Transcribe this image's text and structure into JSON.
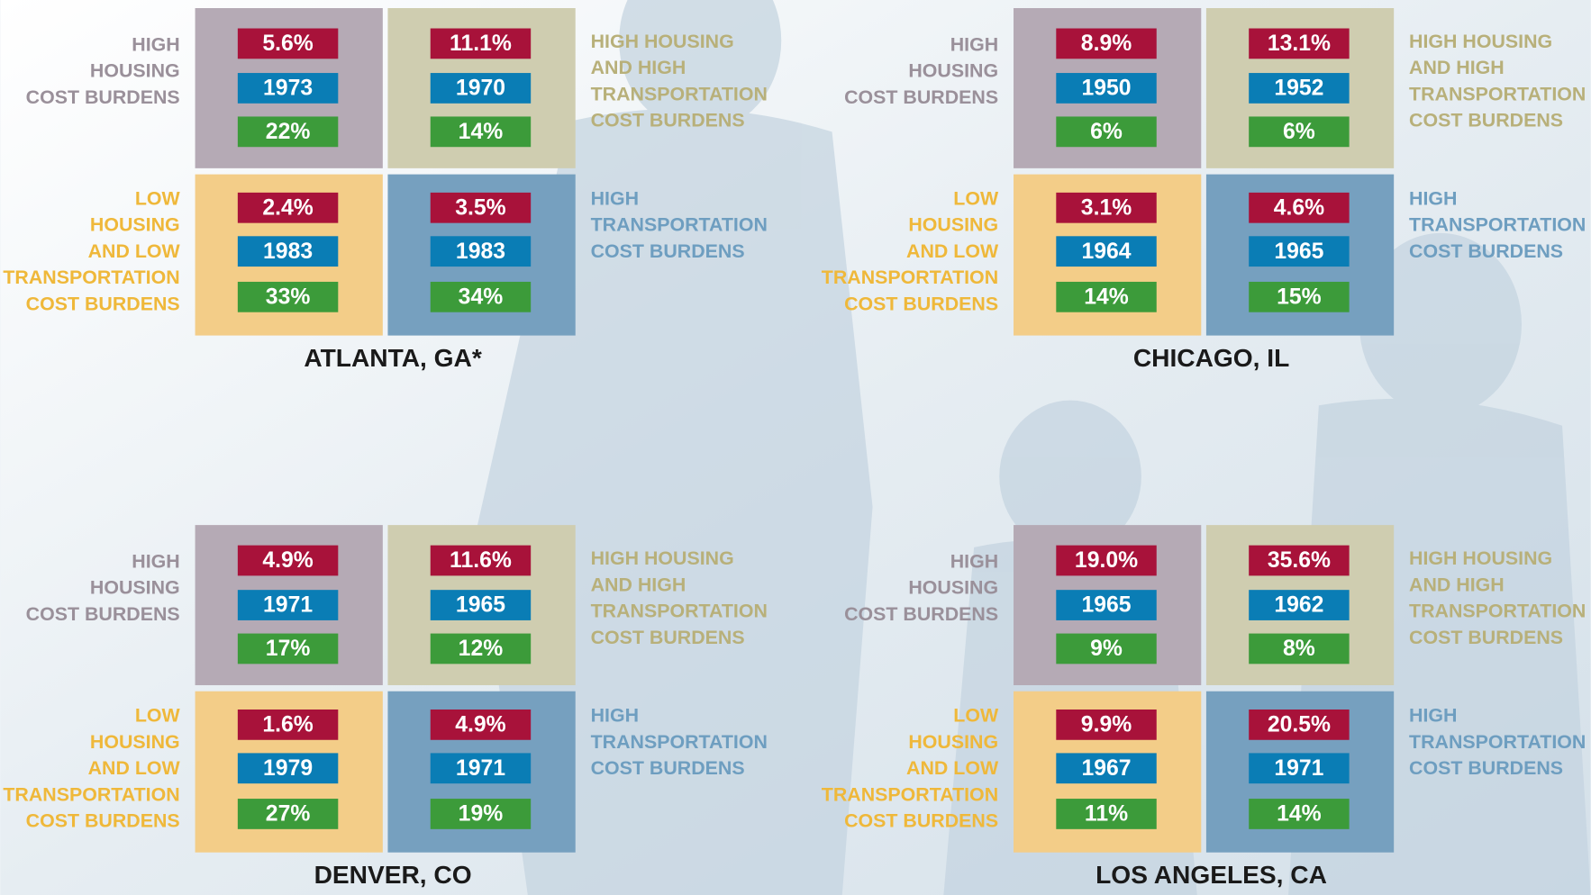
{
  "panels": [
    {
      "city": "ATLANTA, GA*",
      "left_top": [
        "HIGH",
        "HOUSING",
        "COST BURDENS"
      ],
      "right_top": [
        "HIGH HOUSING",
        "AND HIGH",
        "TRANSPORTATION",
        "COST BURDENS"
      ],
      "left_bottom": [
        "LOW",
        "HOUSING",
        "AND LOW",
        "TRANSPORTATION",
        "COST BURDENS"
      ],
      "right_bottom": [
        "HIGH",
        "TRANSPORTATION",
        "COST BURDENS"
      ],
      "cells": [
        {
          "share": "5.6%",
          "year": "1973",
          "pct": "22%"
        },
        {
          "share": "11.1%",
          "year": "1970",
          "pct": "14%"
        },
        {
          "share": "2.4%",
          "year": "1983",
          "pct": "33%"
        },
        {
          "share": "3.5%",
          "year": "1983",
          "pct": "34%"
        }
      ]
    },
    {
      "city": "CHICAGO, IL",
      "left_top": [
        "HIGH",
        "HOUSING",
        "COST BURDENS"
      ],
      "right_top": [
        "HIGH HOUSING",
        "AND HIGH",
        "TRANSPORTATION",
        "COST BURDENS"
      ],
      "left_bottom": [
        "LOW",
        "HOUSING",
        "AND LOW",
        "TRANSPORTATION",
        "COST BURDENS"
      ],
      "right_bottom": [
        "HIGH",
        "TRANSPORTATION",
        "COST BURDENS"
      ],
      "cells": [
        {
          "share": "8.9%",
          "year": "1950",
          "pct": "6%"
        },
        {
          "share": "13.1%",
          "year": "1952",
          "pct": "6%"
        },
        {
          "share": "3.1%",
          "year": "1964",
          "pct": "14%"
        },
        {
          "share": "4.6%",
          "year": "1965",
          "pct": "15%"
        }
      ]
    },
    {
      "city": "DENVER, CO",
      "left_top": [
        "HIGH",
        "HOUSING",
        "COST BURDENS"
      ],
      "right_top": [
        "HIGH HOUSING",
        "AND HIGH",
        "TRANSPORTATION",
        "COST BURDENS"
      ],
      "left_bottom": [
        "LOW",
        "HOUSING",
        "AND LOW",
        "TRANSPORTATION",
        "COST BURDENS"
      ],
      "right_bottom": [
        "HIGH",
        "TRANSPORTATION",
        "COST BURDENS"
      ],
      "cells": [
        {
          "share": "4.9%",
          "year": "1971",
          "pct": "17%"
        },
        {
          "share": "11.6%",
          "year": "1965",
          "pct": "12%"
        },
        {
          "share": "1.6%",
          "year": "1979",
          "pct": "27%"
        },
        {
          "share": "4.9%",
          "year": "1971",
          "pct": "19%"
        }
      ]
    },
    {
      "city": "LOS ANGELES, CA",
      "left_top": [
        "HIGH",
        "HOUSING",
        "COST BURDENS"
      ],
      "right_top": [
        "HIGH HOUSING",
        "AND HIGH",
        "TRANSPORTATION",
        "COST BURDENS"
      ],
      "left_bottom": [
        "LOW",
        "HOUSING",
        "AND LOW",
        "TRANSPORTATION",
        "COST BURDENS"
      ],
      "right_bottom": [
        "HIGH",
        "TRANSPORTATION",
        "COST BURDENS"
      ],
      "cells": [
        {
          "share": "19.0%",
          "year": "1965",
          "pct": "9%"
        },
        {
          "share": "35.6%",
          "year": "1962",
          "pct": "8%"
        },
        {
          "share": "9.9%",
          "year": "1967",
          "pct": "11%"
        },
        {
          "share": "20.5%",
          "year": "1971",
          "pct": "14%"
        }
      ]
    }
  ]
}
